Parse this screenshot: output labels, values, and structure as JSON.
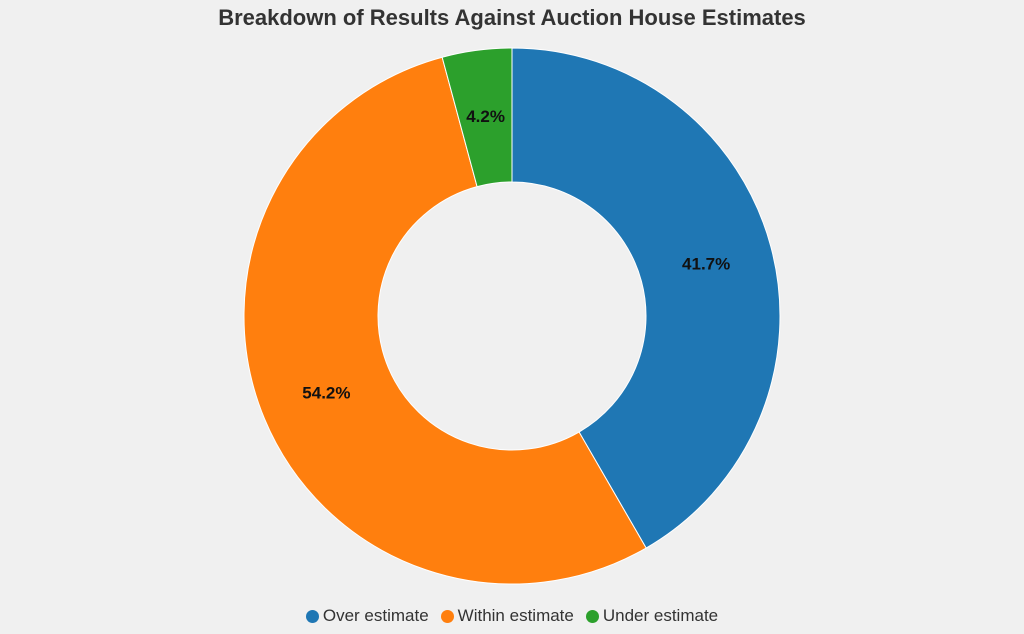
{
  "chart_data": {
    "type": "pie",
    "variant": "donut",
    "title": "Breakdown of Results Against Auction House Estimates",
    "categories": [
      "Over estimate",
      "Within estimate",
      "Under estimate"
    ],
    "values": [
      41.7,
      54.2,
      4.2
    ],
    "value_labels": [
      "41.7%",
      "54.2%",
      "4.2%"
    ],
    "colors": [
      "#1f77b4",
      "#ff7f0e",
      "#2ca02c"
    ],
    "start": "12 o'clock",
    "direction": "clockwise",
    "legend_position": "bottom-center"
  }
}
